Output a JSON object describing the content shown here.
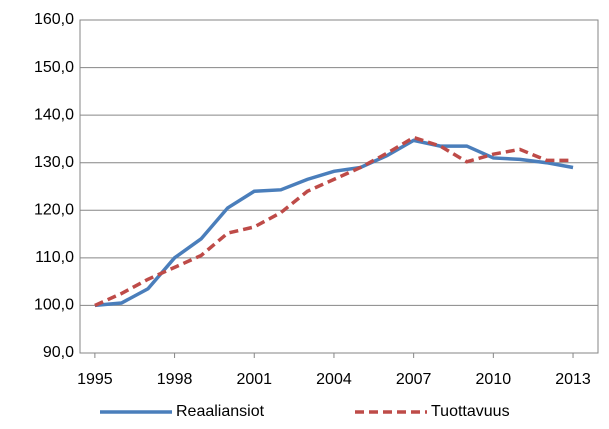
{
  "chart_data": {
    "type": "line",
    "x": [
      1995,
      1996,
      1997,
      1998,
      1999,
      2000,
      2001,
      2002,
      2003,
      2004,
      2005,
      2006,
      2007,
      2008,
      2009,
      2010,
      2011,
      2012,
      2013
    ],
    "series": [
      {
        "name": "Reaaliansiot",
        "color": "#4a7ebb",
        "dash": "solid",
        "values": [
          100,
          100.5,
          103.5,
          110,
          114,
          120.5,
          124,
          124.3,
          126.5,
          128.2,
          129,
          131.5,
          134.7,
          133.5,
          133.5,
          131,
          130.7,
          130,
          129
        ]
      },
      {
        "name": "Tuottavuus",
        "color": "#be4b48",
        "dash": "dashed",
        "values": [
          100,
          102.5,
          105.5,
          108,
          110.5,
          115.2,
          116.5,
          119.5,
          124,
          126.5,
          129,
          132,
          135.3,
          133.5,
          130.2,
          131.8,
          132.8,
          130.5,
          130.5
        ]
      }
    ],
    "xlim": [
      1994.44,
      2013.94
    ],
    "xticks": [
      1995,
      1998,
      2001,
      2004,
      2007,
      2010,
      2013
    ],
    "ylim": [
      90,
      160
    ],
    "yticks": [
      {
        "value": 90,
        "label": "90,0"
      },
      {
        "value": 100,
        "label": "100,0"
      },
      {
        "value": 110,
        "label": "110,0"
      },
      {
        "value": 120,
        "label": "120,0"
      },
      {
        "value": 130,
        "label": "130,0"
      },
      {
        "value": 140,
        "label": "140,0"
      },
      {
        "value": 150,
        "label": "150,0"
      },
      {
        "value": 160,
        "label": "160,0"
      }
    ],
    "grid": true,
    "legend": "bottom"
  }
}
